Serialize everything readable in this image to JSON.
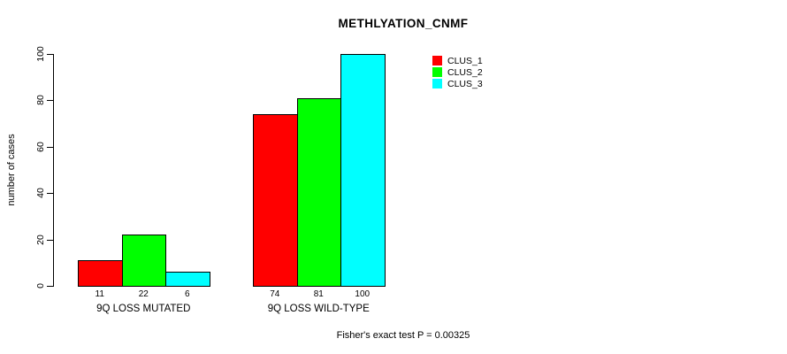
{
  "chart_data": {
    "type": "bar",
    "title": "METHLYATION_CNMF",
    "xlabel": "",
    "ylabel": "number of cases",
    "ylim": [
      0,
      100
    ],
    "yticks": [
      0,
      20,
      40,
      60,
      80,
      100
    ],
    "grid": false,
    "legend_position": "top-right",
    "bar_value_labels": true,
    "categories": [
      "9Q LOSS MUTATED",
      "9Q LOSS WILD-TYPE"
    ],
    "series": [
      {
        "name": "CLUS_1",
        "color": "#ff0000",
        "values": [
          11,
          74
        ]
      },
      {
        "name": "CLUS_2",
        "color": "#00ff00",
        "values": [
          22,
          81
        ]
      },
      {
        "name": "CLUS_3",
        "color": "#00ffff",
        "values": [
          6,
          100
        ]
      }
    ],
    "footnote": "Fisher's exact test P = 0.00325"
  }
}
